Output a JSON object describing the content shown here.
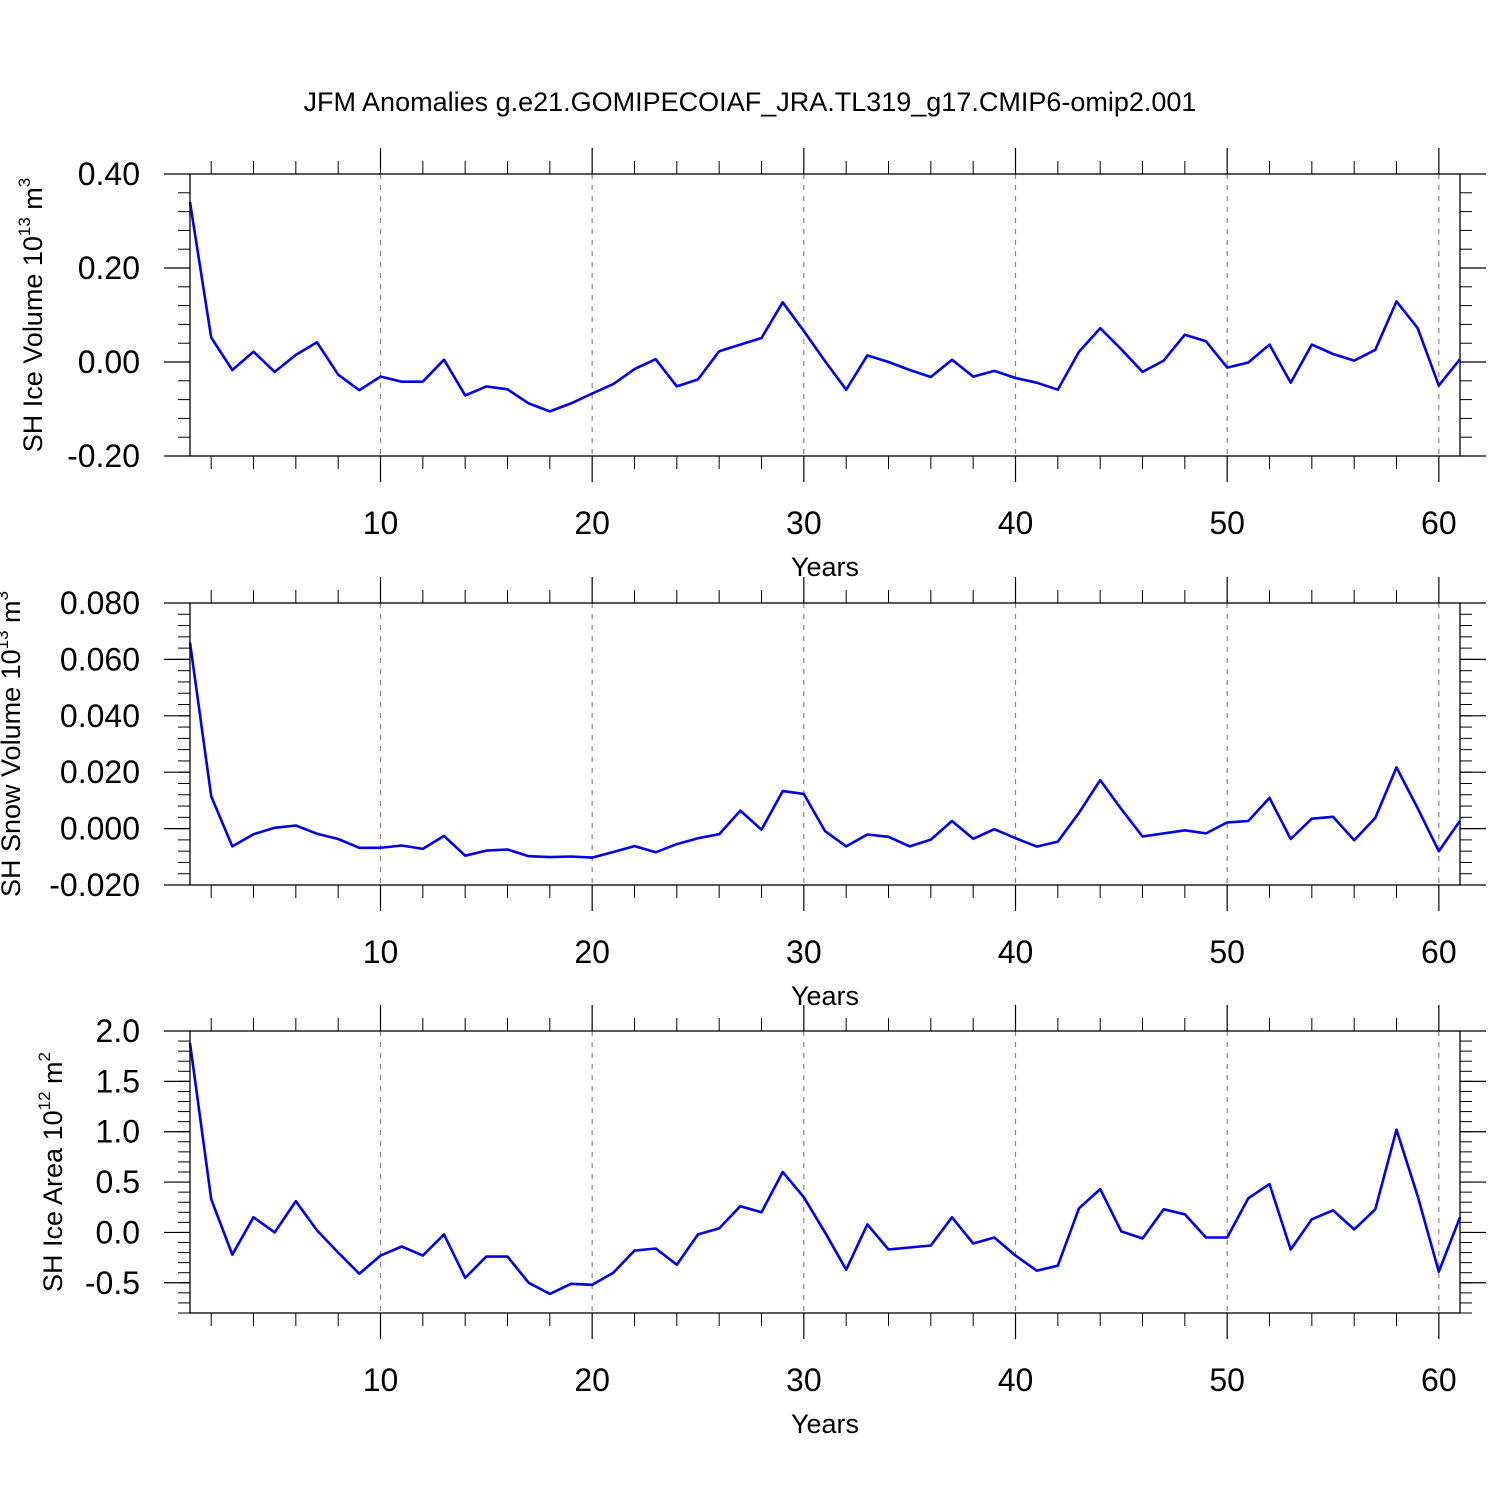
{
  "title": "JFM Anomalies g.e21.GOMIPECOIAF_JRA.TL319_g17.CMIP6-omip2.001",
  "colors": {
    "line": "#0000ee",
    "grid": "#888888",
    "axis": "#000000"
  },
  "chart_data": [
    {
      "type": "line",
      "ylabel": {
        "text": "SH Ice Volume 10",
        "sup": "13",
        "unit": " m",
        "unit_sup": "3"
      },
      "xlabel": "Years",
      "xlim": [
        1,
        61
      ],
      "ylim": [
        -0.2,
        0.4
      ],
      "yticks": [
        -0.2,
        0.0,
        0.2,
        0.4
      ],
      "ytick_labels": [
        "-0.20",
        "0.00",
        "0.20",
        "0.40"
      ],
      "xticks": [
        10,
        20,
        30,
        40,
        50,
        60
      ],
      "xtick_labels": [
        "10",
        "20",
        "30",
        "40",
        "50",
        "60"
      ],
      "grid": "vertical dashed at major x ticks",
      "series": [
        {
          "name": "SH Ice Volume anomaly",
          "values": [
            0.34,
            0.052,
            -0.017,
            0.022,
            -0.021,
            0.015,
            0.042,
            -0.027,
            -0.06,
            -0.031,
            -0.042,
            -0.042,
            0.005,
            -0.071,
            -0.052,
            -0.058,
            -0.088,
            -0.105,
            -0.088,
            -0.067,
            -0.047,
            -0.015,
            0.006,
            -0.052,
            -0.037,
            0.023,
            0.037,
            0.051,
            0.127,
            0.066,
            0.002,
            -0.059,
            0.014,
            0.0,
            -0.017,
            -0.032,
            0.005,
            -0.031,
            -0.019,
            -0.034,
            -0.044,
            -0.059,
            0.022,
            0.072,
            0.027,
            -0.021,
            0.003,
            0.058,
            0.044,
            -0.012,
            -0.001,
            0.037,
            -0.044,
            0.037,
            0.017,
            0.003,
            0.026,
            0.129,
            0.072,
            -0.05,
            0.006
          ]
        }
      ]
    },
    {
      "type": "line",
      "ylabel": {
        "text": "SH Snow Volume 10",
        "sup": "13",
        "unit": " m",
        "unit_sup": "3"
      },
      "xlabel": "Years",
      "xlim": [
        1,
        61
      ],
      "ylim": [
        -0.02,
        0.08
      ],
      "yticks": [
        -0.02,
        0.0,
        0.02,
        0.04,
        0.06,
        0.08
      ],
      "ytick_labels": [
        "-0.020",
        "0.000",
        "0.020",
        "0.040",
        "0.060",
        "0.080"
      ],
      "xticks": [
        10,
        20,
        30,
        40,
        50,
        60
      ],
      "xtick_labels": [
        "10",
        "20",
        "30",
        "40",
        "50",
        "60"
      ],
      "grid": "vertical dashed at major x ticks",
      "series": [
        {
          "name": "SH Snow Volume anomaly",
          "values": [
            0.066,
            0.0115,
            -0.0063,
            -0.002,
            0.0003,
            0.0011,
            -0.0018,
            -0.0037,
            -0.0068,
            -0.0068,
            -0.006,
            -0.0072,
            -0.0026,
            -0.0096,
            -0.0078,
            -0.0074,
            -0.0098,
            -0.0101,
            -0.0099,
            -0.0103,
            -0.0083,
            -0.0062,
            -0.0084,
            -0.0055,
            -0.0034,
            -0.002,
            0.0064,
            -0.0004,
            0.0133,
            0.0123,
            -0.0009,
            -0.0063,
            -0.0021,
            -0.0029,
            -0.0063,
            -0.0039,
            0.0027,
            -0.0036,
            -0.0002,
            -0.0034,
            -0.0064,
            -0.0046,
            0.0056,
            0.0172,
            0.0069,
            -0.0028,
            -0.0017,
            -0.0006,
            -0.0017,
            0.0022,
            0.0027,
            0.0109,
            -0.0037,
            0.0035,
            0.0042,
            -0.0041,
            0.0038,
            0.0217,
            0.0072,
            -0.008,
            0.0028
          ]
        }
      ]
    },
    {
      "type": "line",
      "ylabel": {
        "text": "SH Ice Area 10",
        "sup": "12",
        "unit": " m",
        "unit_sup": "2"
      },
      "xlabel": "Years",
      "xlim": [
        1,
        61
      ],
      "ylim": [
        -0.8,
        2.0
      ],
      "yticks": [
        -0.5,
        0.0,
        0.5,
        1.0,
        1.5,
        2.0
      ],
      "ytick_labels": [
        "-0.5",
        "0.0",
        "0.5",
        "1.0",
        "1.5",
        "2.0"
      ],
      "xticks": [
        10,
        20,
        30,
        40,
        50,
        60
      ],
      "xtick_labels": [
        "10",
        "20",
        "30",
        "40",
        "50",
        "60"
      ],
      "grid": "vertical dashed at major x ticks",
      "series": [
        {
          "name": "SH Ice Area anomaly",
          "values": [
            1.88,
            0.33,
            -0.22,
            0.15,
            0.0,
            0.31,
            0.02,
            -0.2,
            -0.41,
            -0.23,
            -0.14,
            -0.23,
            -0.02,
            -0.45,
            -0.24,
            -0.24,
            -0.5,
            -0.61,
            -0.51,
            -0.52,
            -0.4,
            -0.18,
            -0.16,
            -0.32,
            -0.02,
            0.04,
            0.26,
            0.2,
            0.6,
            0.35,
            0.0,
            -0.37,
            0.08,
            -0.17,
            -0.15,
            -0.13,
            0.15,
            -0.11,
            -0.05,
            -0.23,
            -0.38,
            -0.33,
            0.24,
            0.43,
            0.01,
            -0.06,
            0.23,
            0.18,
            -0.05,
            -0.05,
            0.34,
            0.48,
            -0.17,
            0.13,
            0.22,
            0.03,
            0.23,
            1.02,
            0.36,
            -0.39,
            0.15
          ]
        }
      ]
    }
  ]
}
